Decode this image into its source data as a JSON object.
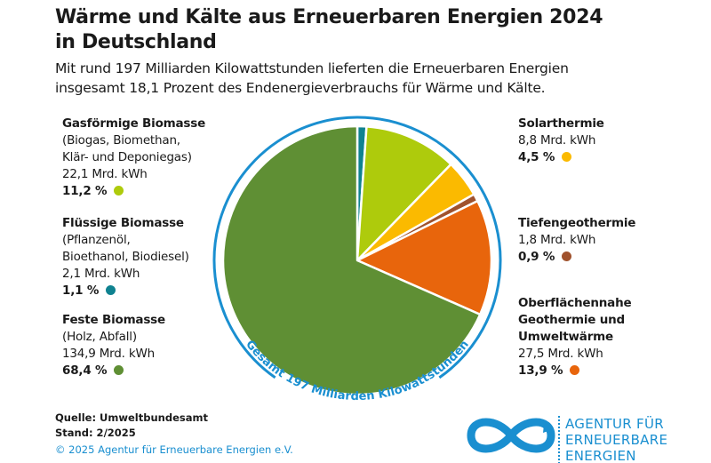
{
  "title": [
    "Wärme und Kälte aus Erneuerbaren Energien 2024",
    "in Deutschland"
  ],
  "subtitle": [
    "Mit rund 197 Milliarden Kilowattstunden lieferten die Erneuerbaren Energien",
    "insgesamt 18,1 Prozent des Endenergieverbrauchs für Wärme und Kälte."
  ],
  "chart_data": {
    "type": "pie",
    "total_label": "Gesamt 197 Milliarden Kilowattstunden",
    "unit": "Mrd. kWh",
    "slices": [
      {
        "name": "Flüssige Biomasse",
        "details": [
          "(Pflanzenöl,",
          "Bioethanol, Biodiesel)"
        ],
        "value_label": "2,1 Mrd. kWh",
        "value": 2.1,
        "percent": 1.1,
        "percent_label": "1,1 %",
        "color": "#0f8290"
      },
      {
        "name": "Gasförmige Biomasse",
        "details": [
          "(Biogas, Biomethan,",
          "Klär- und Deponiegas)"
        ],
        "value_label": "22,1 Mrd. kWh",
        "value": 22.1,
        "percent": 11.2,
        "percent_label": "11,2 %",
        "color": "#aecb0c"
      },
      {
        "name": "Solarthermie",
        "details": [],
        "value_label": "8,8 Mrd. kWh",
        "value": 8.8,
        "percent": 4.5,
        "percent_label": "4,5 %",
        "color": "#fbba00"
      },
      {
        "name": "Tiefengeothermie",
        "details": [],
        "value_label": "1,8 Mrd. kWh",
        "value": 1.8,
        "percent": 0.9,
        "percent_label": "0,9 %",
        "color": "#a0522d"
      },
      {
        "name": "Oberflächennahe Geothermie und Umweltwärme",
        "name_lines": [
          "Oberflächennahe",
          "Geothermie und",
          "Umweltwärme"
        ],
        "details": [],
        "value_label": "27,5 Mrd. kWh",
        "value": 27.5,
        "percent": 13.9,
        "percent_label": "13,9 %",
        "color": "#e8650c"
      },
      {
        "name": "Feste Biomasse",
        "details": [
          "(Holz, Abfall)"
        ],
        "value_label": "134,9 Mrd. kWh",
        "value": 134.9,
        "percent": 68.4,
        "percent_label": "68,4 %",
        "color": "#5f8f34"
      }
    ],
    "ring_color": "#1a8fd0"
  },
  "footer": {
    "source": "Quelle: Umweltbundesamt",
    "stand": "Stand: 2/2025",
    "copyright": "© 2025 Agentur für Erneuerbare Energien e.V."
  },
  "logo": {
    "lines": [
      "AGENTUR FÜR",
      "ERNEUERBARE",
      "ENERGIEN"
    ],
    "color": "#1a8fd0"
  }
}
